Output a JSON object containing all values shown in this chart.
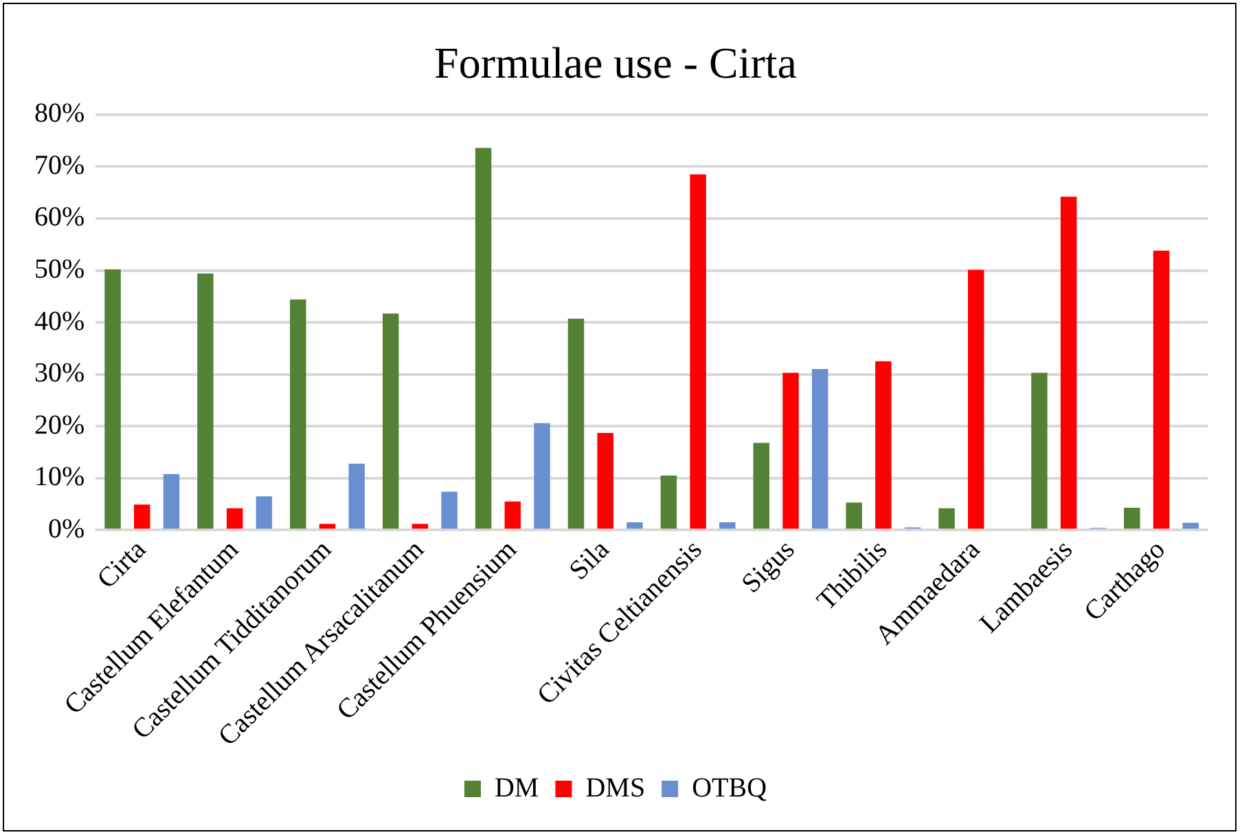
{
  "chart_data": {
    "type": "bar",
    "title": "Formulae use - Cirta",
    "categories": [
      "Cirta",
      "Castellum Elefantum",
      "Castellum Tidditanorum",
      "Castellum Arsacalitanum",
      "Castellum Phuensium",
      "Sila",
      "Civitas Celtianensis",
      "Sigus",
      "Thibilis",
      "Ammaedara",
      "Lambaesis",
      "Carthago"
    ],
    "series": [
      {
        "name": "DM",
        "color": "#548235",
        "values": [
          50.2,
          49.4,
          44.4,
          41.7,
          73.6,
          40.7,
          10.5,
          16.8,
          5.3,
          4.2,
          30.3,
          4.3
        ]
      },
      {
        "name": "DMS",
        "color": "#ff0000",
        "values": [
          4.9,
          4.2,
          1.2,
          1.2,
          5.5,
          18.7,
          68.5,
          30.3,
          32.5,
          50.1,
          64.2,
          53.8
        ]
      },
      {
        "name": "OTBQ",
        "color": "#6a8fd0",
        "values": [
          10.8,
          6.5,
          12.8,
          7.4,
          20.6,
          1.5,
          1.5,
          31.0,
          0.5,
          0,
          0.4,
          1.4
        ]
      }
    ],
    "ylim": [
      0,
      80
    ],
    "yticks": [
      {
        "value": 0,
        "label": "0%"
      },
      {
        "value": 10,
        "label": "10%"
      },
      {
        "value": 20,
        "label": "20%"
      },
      {
        "value": 30,
        "label": "30%"
      },
      {
        "value": 40,
        "label": "40%"
      },
      {
        "value": 50,
        "label": "50%"
      },
      {
        "value": 60,
        "label": "60%"
      },
      {
        "value": 70,
        "label": "70%"
      },
      {
        "value": 80,
        "label": "80%"
      }
    ],
    "grid": "y",
    "legend": "bottom"
  }
}
